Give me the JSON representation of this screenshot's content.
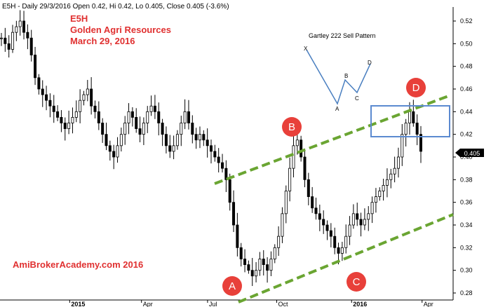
{
  "header": {
    "info": "E5H - Daily 29/3/2016 Open 0.42, Hi 0.42, Lo 0.405, Close 0.405 (-3.6%)"
  },
  "title": {
    "symbol": "E5H",
    "company": "Golden Agri Resources",
    "date": "March 29, 2016"
  },
  "watermark": "AmiBrokerAcademy.com  2016",
  "pattern": {
    "title": "Gartley 222 Sell Pattern",
    "points": [
      "X",
      "A",
      "B",
      "C",
      "D"
    ]
  },
  "price_tag": "0.405",
  "colors": {
    "title_red": "#e03030",
    "marker_red": "#e8403a",
    "channel_green": "#6aa532",
    "box_blue": "#5b8ad0",
    "pattern_blue": "#4a7fc0",
    "candle": "#000000"
  },
  "chart_data": {
    "type": "candlestick",
    "ylim": [
      0.27,
      0.53
    ],
    "y_ticks": [
      "0.52",
      "0.50",
      "0.48",
      "0.46",
      "0.44",
      "0.42",
      "0.40",
      "0.38",
      "0.36",
      "0.34",
      "0.32",
      "0.30",
      "0.28"
    ],
    "x_ticks": [
      "2015",
      "Apr",
      "Jul",
      "Oct",
      "2016",
      "Apr"
    ],
    "closes": [
      0.505,
      0.5,
      0.495,
      0.51,
      0.515,
      0.52,
      0.51,
      0.505,
      0.49,
      0.47,
      0.46,
      0.455,
      0.45,
      0.445,
      0.44,
      0.435,
      0.43,
      0.425,
      0.43,
      0.435,
      0.44,
      0.45,
      0.455,
      0.46,
      0.445,
      0.44,
      0.43,
      0.42,
      0.41,
      0.405,
      0.4,
      0.41,
      0.42,
      0.43,
      0.44,
      0.435,
      0.425,
      0.42,
      0.43,
      0.44,
      0.445,
      0.44,
      0.43,
      0.42,
      0.41,
      0.405,
      0.41,
      0.42,
      0.43,
      0.44,
      0.43,
      0.42,
      0.415,
      0.42,
      0.415,
      0.41,
      0.405,
      0.4,
      0.395,
      0.39,
      0.38,
      0.36,
      0.34,
      0.32,
      0.31,
      0.305,
      0.3,
      0.295,
      0.3,
      0.31,
      0.305,
      0.3,
      0.31,
      0.32,
      0.33,
      0.35,
      0.37,
      0.39,
      0.41,
      0.415,
      0.4,
      0.38,
      0.365,
      0.355,
      0.35,
      0.345,
      0.34,
      0.335,
      0.33,
      0.32,
      0.315,
      0.32,
      0.33,
      0.34,
      0.35,
      0.345,
      0.34,
      0.345,
      0.35,
      0.36,
      0.365,
      0.37,
      0.375,
      0.38,
      0.385,
      0.39,
      0.4,
      0.42,
      0.43,
      0.44,
      0.43,
      0.42,
      0.405
    ],
    "annotations": [
      {
        "label": "A",
        "x": "Aug 2015",
        "y": 0.285
      },
      {
        "label": "B",
        "x": "Sep 2015",
        "y": 0.415
      },
      {
        "label": "C",
        "x": "Jan 2016",
        "y": 0.31
      },
      {
        "label": "D",
        "x": "Mar 2016",
        "y": 0.44
      }
    ],
    "channel_lines": [
      {
        "name": "upper",
        "from": {
          "x": "Jul 2015",
          "y": 0.38
        },
        "to": {
          "x": "Apr 2016",
          "y": 0.455
        }
      },
      {
        "name": "lower",
        "from": {
          "x": "Aug 2015",
          "y": 0.272
        },
        "to": {
          "x": "Apr 2016",
          "y": 0.35
        }
      }
    ],
    "box": {
      "x_from": "Feb 2016",
      "x_to": "Apr 2016",
      "y_from": 0.42,
      "y_to": 0.446
    }
  }
}
